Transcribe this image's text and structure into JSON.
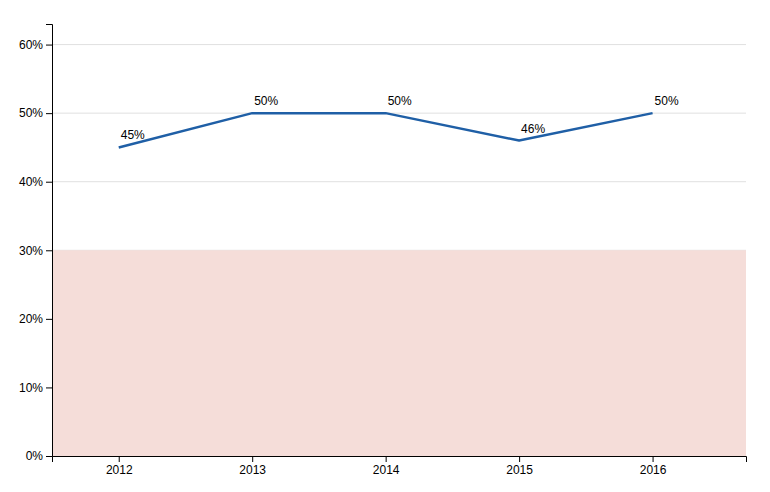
{
  "chart_data": {
    "type": "line",
    "x": [
      2012,
      2013,
      2014,
      2015,
      2016
    ],
    "values": [
      0.45,
      0.5,
      0.5,
      0.46,
      0.5
    ],
    "value_labels": [
      "45%",
      "50%",
      "50%",
      "46%",
      "50%"
    ],
    "data_labels": true,
    "color": "#1f5fa6",
    "shade": {
      "value": 0.3,
      "color": "#f5ddd9"
    },
    "xlim": [
      2011.5,
      2016.7
    ],
    "xticks": [
      2012,
      2013,
      2014,
      2015,
      2016
    ],
    "ylim": [
      0.0,
      0.63
    ],
    "yticks": [
      {
        "value": 0.0,
        "label": "0%"
      },
      {
        "value": 0.1,
        "label": "10%"
      },
      {
        "value": 0.2,
        "label": "20%"
      },
      {
        "value": 0.3,
        "label": "30%"
      },
      {
        "value": 0.4,
        "label": "40%"
      },
      {
        "value": 0.5,
        "label": "50%"
      },
      {
        "value": 0.6,
        "label": "60%"
      }
    ],
    "grid": true
  }
}
